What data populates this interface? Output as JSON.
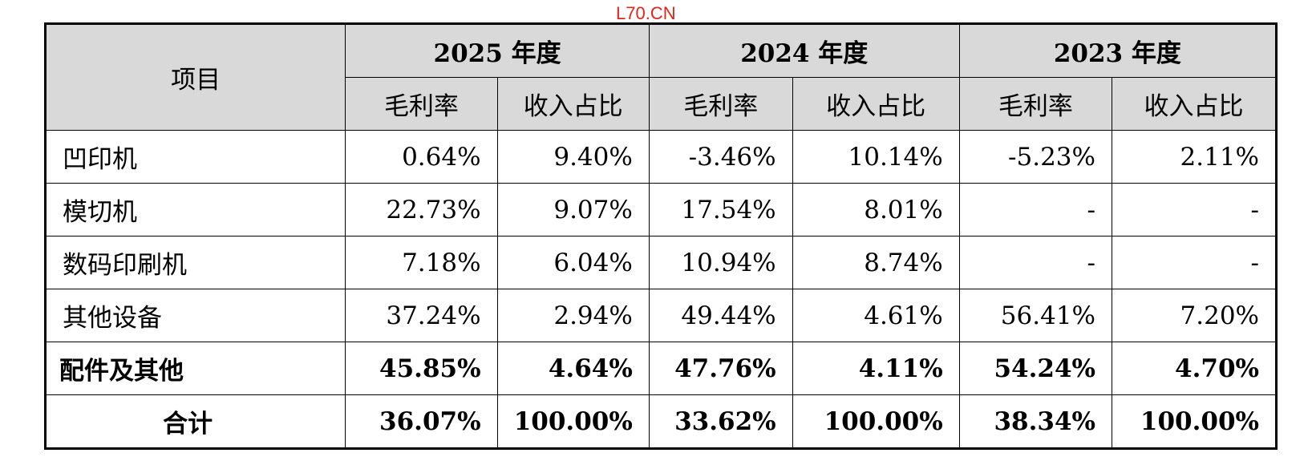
{
  "watermark": "L70.CN",
  "table": {
    "header": {
      "item_label": "项目",
      "years": [
        "2025 年度",
        "2024 年度",
        "2023 年度"
      ],
      "sub_labels": [
        "毛利率",
        "收入占比",
        "毛利率",
        "收入占比",
        "毛利率",
        "收入占比"
      ]
    },
    "rows": [
      {
        "item": "凹印机",
        "values": [
          "0.64%",
          "9.40%",
          "-3.46%",
          "10.14%",
          "-5.23%",
          "2.11%"
        ]
      },
      {
        "item": "模切机",
        "values": [
          "22.73%",
          "9.07%",
          "17.54%",
          "8.01%",
          "-",
          "-"
        ]
      },
      {
        "item": "数码印刷机",
        "values": [
          "7.18%",
          "6.04%",
          "10.94%",
          "8.74%",
          "-",
          "-"
        ]
      },
      {
        "item": "其他设备",
        "values": [
          "37.24%",
          "2.94%",
          "49.44%",
          "4.61%",
          "56.41%",
          "7.20%"
        ]
      },
      {
        "item": "配件及其他",
        "values": [
          "45.85%",
          "4.64%",
          "47.76%",
          "4.11%",
          "54.24%",
          "4.70%"
        ]
      },
      {
        "item": "合计",
        "values": [
          "36.07%",
          "100.00%",
          "33.62%",
          "100.00%",
          "38.34%",
          "100.00%"
        ]
      }
    ]
  }
}
